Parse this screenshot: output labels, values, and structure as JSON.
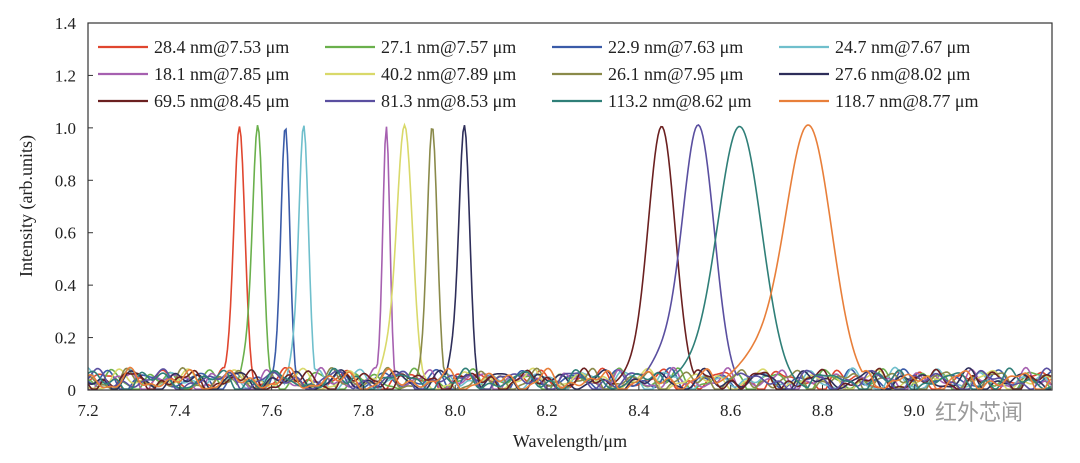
{
  "chart_data": {
    "type": "line",
    "title": "",
    "xlabel": "Wavelength/μm",
    "ylabel": "Intensity (arb.units)",
    "xlim": [
      7.2,
      9.3
    ],
    "ylim": [
      0,
      1.4
    ],
    "xticks": [
      "7.2",
      "7.4",
      "7.6",
      "7.8",
      "8.0",
      "8.2",
      "8.4",
      "8.6",
      "8.8",
      "9.0"
    ],
    "yticks": [
      "0",
      "0.2",
      "0.4",
      "0.6",
      "0.8",
      "1.0",
      "1.2",
      "1.4"
    ],
    "grid": false,
    "legend_position": "top",
    "series": [
      {
        "name": "28.4 nm@7.53 μm",
        "peak": 7.53,
        "fwhm_nm": 28.4,
        "max": 1.0,
        "color": "#e0462f"
      },
      {
        "name": "27.1 nm@7.57 μm",
        "peak": 7.57,
        "fwhm_nm": 27.1,
        "max": 1.0,
        "color": "#6ab04c"
      },
      {
        "name": "22.9 nm@7.63 μm",
        "peak": 7.63,
        "fwhm_nm": 22.9,
        "max": 1.0,
        "color": "#3a5ba8"
      },
      {
        "name": "24.7 nm@7.67 μm",
        "peak": 7.67,
        "fwhm_nm": 24.7,
        "max": 1.0,
        "color": "#6fbfcc"
      },
      {
        "name": "18.1 nm@7.85 μm",
        "peak": 7.85,
        "fwhm_nm": 18.1,
        "max": 1.0,
        "color": "#a660b0"
      },
      {
        "name": "40.2 nm@7.89 μm",
        "peak": 7.89,
        "fwhm_nm": 40.2,
        "max": 1.0,
        "color": "#d9d96a"
      },
      {
        "name": "26.1 nm@7.95 μm",
        "peak": 7.95,
        "fwhm_nm": 26.1,
        "max": 1.0,
        "color": "#8a8a4a"
      },
      {
        "name": "27.6 nm@8.02 μm",
        "peak": 8.02,
        "fwhm_nm": 27.6,
        "max": 1.0,
        "color": "#2e2e5a"
      },
      {
        "name": "69.5 nm@8.45 μm",
        "peak": 8.45,
        "fwhm_nm": 69.5,
        "max": 1.0,
        "color": "#6b2020"
      },
      {
        "name": "81.3 nm@8.53 μm",
        "peak": 8.53,
        "fwhm_nm": 81.3,
        "max": 1.0,
        "color": "#5a4fa0"
      },
      {
        "name": "113.2 nm@8.62 μm",
        "peak": 8.62,
        "fwhm_nm": 113.2,
        "max": 1.0,
        "color": "#2f7f78"
      },
      {
        "name": "118.7 nm@8.77 μm",
        "peak": 8.77,
        "fwhm_nm": 118.7,
        "max": 1.0,
        "color": "#e87f3a"
      }
    ]
  },
  "watermark": "红外芯闻"
}
